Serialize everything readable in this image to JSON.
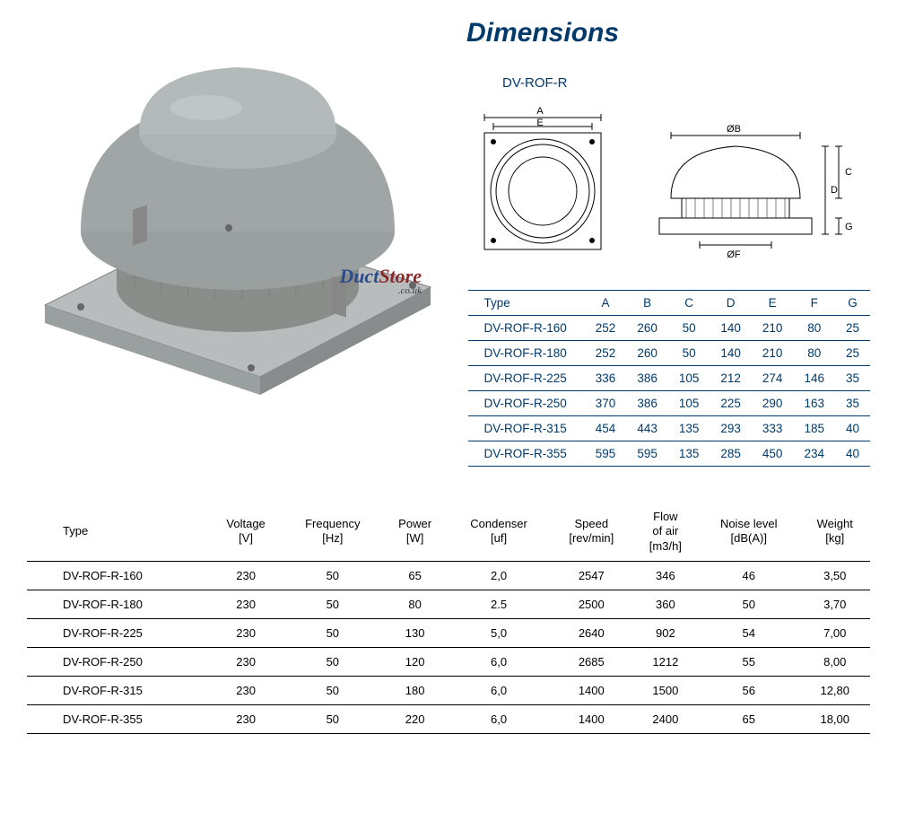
{
  "title": "Dimensions",
  "model": "DV-ROF-R",
  "watermark": {
    "part1": "Duct",
    "part2": "Store",
    "suffix": ".co.uk"
  },
  "colors": {
    "brand_blue": "#003a6b",
    "text_black": "#000000",
    "product_body": "#9aa0a0",
    "product_mesh": "#8a8e8a",
    "product_base": "#b8bcbc",
    "diagram_stroke": "#000000",
    "dim_table_border": "#003a6b",
    "spec_table_border": "#000000",
    "background": "#ffffff"
  },
  "diagram_labels": {
    "top": {
      "A": "A",
      "E": "E"
    },
    "side": {
      "B": "ØB",
      "C": "C",
      "D": "D",
      "F": "ØF",
      "G": "G"
    }
  },
  "dim_table": {
    "columns": [
      "Type",
      "A",
      "B",
      "C",
      "D",
      "E",
      "F",
      "G"
    ],
    "rows": [
      [
        "DV-ROF-R-160",
        "252",
        "260",
        "50",
        "140",
        "210",
        "80",
        "25"
      ],
      [
        "DV-ROF-R-180",
        "252",
        "260",
        "50",
        "140",
        "210",
        "80",
        "25"
      ],
      [
        "DV-ROF-R-225",
        "336",
        "386",
        "105",
        "212",
        "274",
        "146",
        "35"
      ],
      [
        "DV-ROF-R-250",
        "370",
        "386",
        "105",
        "225",
        "290",
        "163",
        "35"
      ],
      [
        "DV-ROF-R-315",
        "454",
        "443",
        "135",
        "293",
        "333",
        "185",
        "40"
      ],
      [
        "DV-ROF-R-355",
        "595",
        "595",
        "135",
        "285",
        "450",
        "234",
        "40"
      ]
    ],
    "header_fontsize": 13.5,
    "cell_fontsize": 13.5
  },
  "spec_table": {
    "columns": [
      {
        "label": "Type",
        "unit": ""
      },
      {
        "label": "Voltage",
        "unit": "[V]"
      },
      {
        "label": "Frequency",
        "unit": "[Hz]"
      },
      {
        "label": "Power",
        "unit": "[W]"
      },
      {
        "label": "Condenser",
        "unit": "[uf]"
      },
      {
        "label": "Speed",
        "unit": "[rev/min]"
      },
      {
        "label": "Flow\nof air",
        "unit": "[m3/h]"
      },
      {
        "label": "Noise level",
        "unit": "[dB(A)]"
      },
      {
        "label": "Weight",
        "unit": "[kg]"
      }
    ],
    "rows": [
      [
        "DV-ROF-R-160",
        "230",
        "50",
        "65",
        "2,0",
        "2547",
        "346",
        "46",
        "3,50"
      ],
      [
        "DV-ROF-R-180",
        "230",
        "50",
        "80",
        "2.5",
        "2500",
        "360",
        "50",
        "3,70"
      ],
      [
        "DV-ROF-R-225",
        "230",
        "50",
        "130",
        "5,0",
        "2640",
        "902",
        "54",
        "7,00"
      ],
      [
        "DV-ROF-R-250",
        "230",
        "50",
        "120",
        "6,0",
        "2685",
        "1212",
        "55",
        "8,00"
      ],
      [
        "DV-ROF-R-315",
        "230",
        "50",
        "180",
        "6,0",
        "1400",
        "1500",
        "56",
        "12,80"
      ],
      [
        "DV-ROF-R-355",
        "230",
        "50",
        "220",
        "6,0",
        "1400",
        "2400",
        "65",
        "18,00"
      ]
    ],
    "header_fontsize": 13,
    "cell_fontsize": 13
  }
}
